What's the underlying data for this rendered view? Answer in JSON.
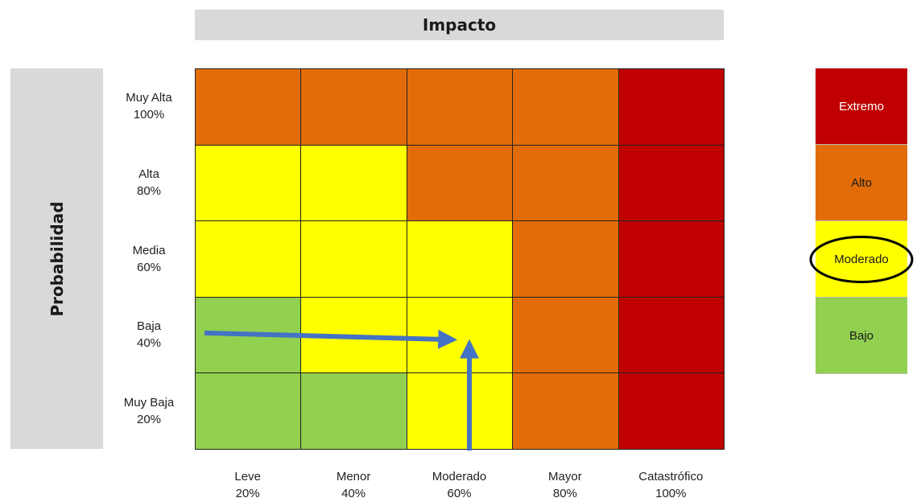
{
  "chart_data": {
    "type": "heatmap",
    "title": "Impacto",
    "xlabel": "Impacto",
    "ylabel": "Probabilidad",
    "x_categories": [
      {
        "name": "Leve",
        "pct": "20%"
      },
      {
        "name": "Menor",
        "pct": "40%"
      },
      {
        "name": "Moderado",
        "pct": "60%"
      },
      {
        "name": "Mayor",
        "pct": "80%"
      },
      {
        "name": "Catastrófico",
        "pct": "100%"
      }
    ],
    "y_categories": [
      {
        "name": "Muy Alta",
        "pct": "100%"
      },
      {
        "name": "Alta",
        "pct": "80%"
      },
      {
        "name": "Media",
        "pct": "60%"
      },
      {
        "name": "Baja",
        "pct": "40%"
      },
      {
        "name": "Muy Baja",
        "pct": "20%"
      }
    ],
    "matrix": [
      [
        "Alto",
        "Alto",
        "Alto",
        "Alto",
        "Extremo"
      ],
      [
        "Moderado",
        "Moderado",
        "Alto",
        "Alto",
        "Extremo"
      ],
      [
        "Moderado",
        "Moderado",
        "Moderado",
        "Alto",
        "Extremo"
      ],
      [
        "Bajo",
        "Moderado",
        "Moderado",
        "Alto",
        "Extremo"
      ],
      [
        "Bajo",
        "Bajo",
        "Moderado",
        "Alto",
        "Extremo"
      ]
    ],
    "levels": [
      {
        "label": "Extremo",
        "color": "#c00000",
        "text_color": "#ffffff"
      },
      {
        "label": "Alto",
        "color": "#e36c0a",
        "text_color": "#1a1a1a"
      },
      {
        "label": "Moderado",
        "color": "#ffff00",
        "text_color": "#1a1a1a"
      },
      {
        "label": "Bajo",
        "color": "#92d050",
        "text_color": "#1a1a1a"
      }
    ],
    "highlighted_level": "Moderado",
    "annotation": {
      "from_probability": "Baja",
      "from_impact": "Moderado",
      "result": "Moderado",
      "arrow_color": "#4472c4",
      "circle_color": "#000000"
    },
    "legend_position": "right"
  }
}
